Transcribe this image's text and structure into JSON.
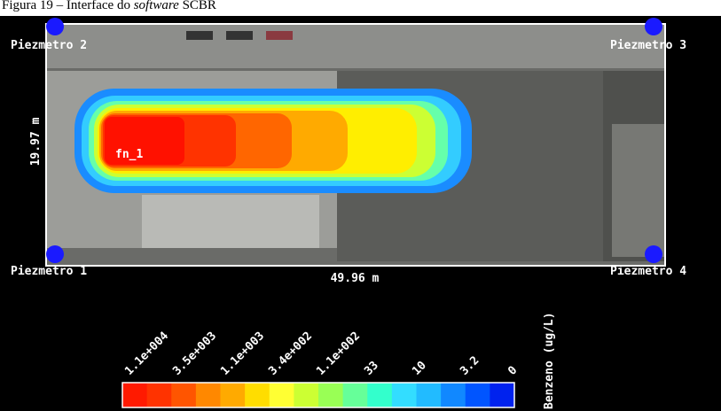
{
  "caption": {
    "prefix": "Figura 19 – Interface do ",
    "emphasis": "software",
    "suffix": " SCBR"
  },
  "map": {
    "piezometers": [
      "Piezmetro 2",
      "Piezmetro 3",
      "Piezmetro 1",
      "Piezmetro 4"
    ],
    "height_label": "19.97 m",
    "width_label": "49.96 m",
    "source_label": "fn_1"
  },
  "colorbar": {
    "labels": [
      "1.1e+004",
      "3.5e+003",
      "1.1e+003",
      "3.4e+002",
      "1.1e+002",
      "33",
      "10",
      "3.2",
      "0"
    ],
    "title": "Benzeno (ug/L)"
  }
}
